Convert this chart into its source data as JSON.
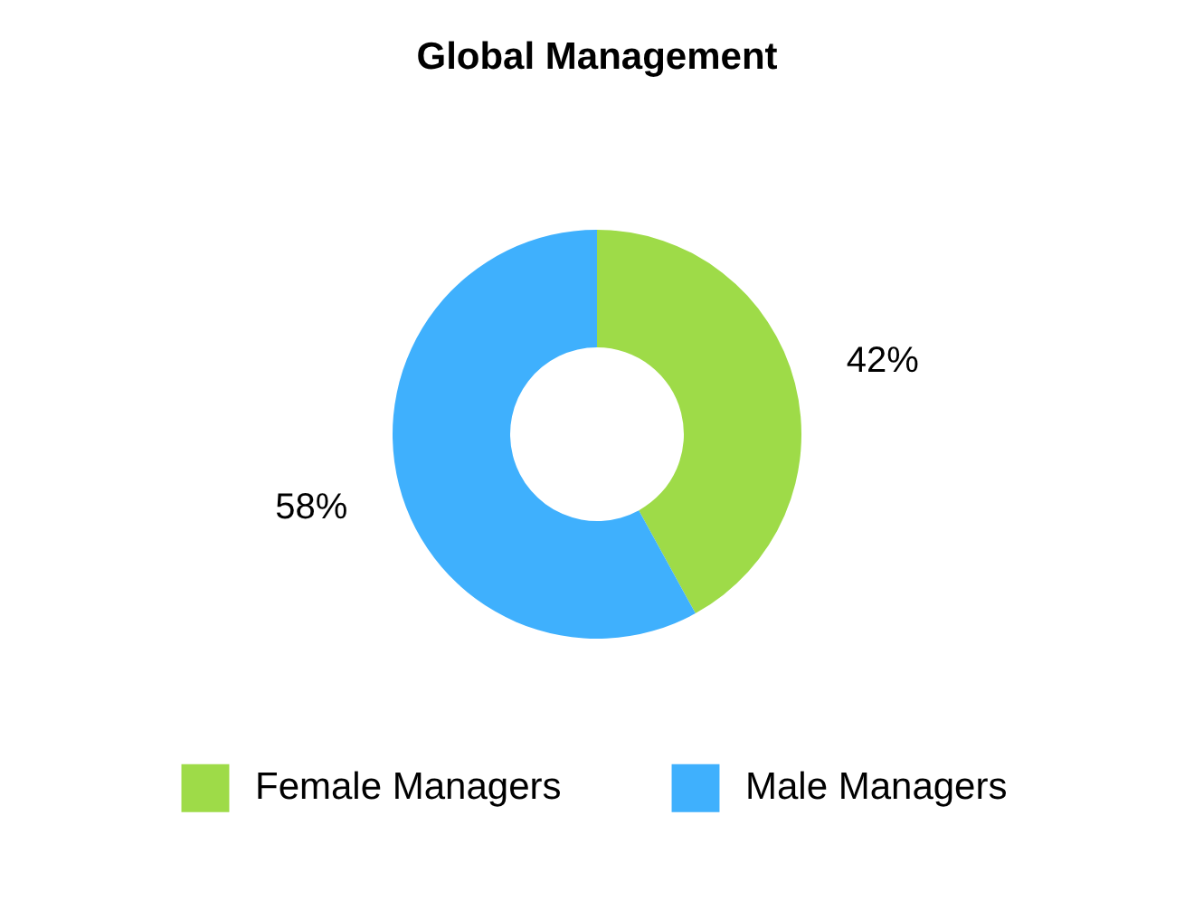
{
  "chart_data": {
    "type": "donut",
    "title": "Global Management",
    "categories": [
      "Female Managers",
      "Male Managers"
    ],
    "values": [
      42,
      58
    ],
    "colors": [
      "#9edb48",
      "#3fb0fd"
    ],
    "value_labels": [
      "42%",
      "58%"
    ],
    "legend": "bottom"
  }
}
